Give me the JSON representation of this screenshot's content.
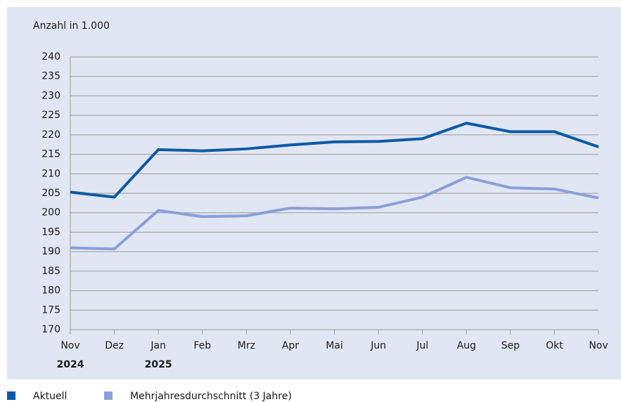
{
  "chart_data": {
    "type": "line",
    "y_axis_label": "Anzahl in 1.000",
    "categories": [
      "Nov",
      "Dez",
      "Jan",
      "Feb",
      "Mrz",
      "Apr",
      "Mai",
      "Jun",
      "Jul",
      "Aug",
      "Sep",
      "Okt",
      "Nov"
    ],
    "year_labels": [
      "2024",
      null,
      "2025",
      null,
      null,
      null,
      null,
      null,
      null,
      null,
      null,
      null,
      null
    ],
    "series": [
      {
        "name": "Aktuell",
        "color": "#0b5aa6",
        "values": [
          205.3,
          204.0,
          216.2,
          215.9,
          216.4,
          217.4,
          218.2,
          218.3,
          219.0,
          223.0,
          220.8,
          220.8,
          216.9
        ]
      },
      {
        "name": "Mehrjahresdurchschnitt (3 Jahre)",
        "color": "#8b9fd8",
        "values": [
          191.0,
          190.7,
          200.6,
          199.0,
          199.2,
          201.2,
          201.0,
          201.4,
          204.0,
          209.1,
          206.4,
          206.1,
          203.8
        ]
      }
    ],
    "ylim": [
      170,
      240
    ],
    "yticks": [
      170,
      175,
      180,
      185,
      190,
      195,
      200,
      205,
      210,
      215,
      220,
      225,
      230,
      235,
      240
    ],
    "grid": true
  }
}
